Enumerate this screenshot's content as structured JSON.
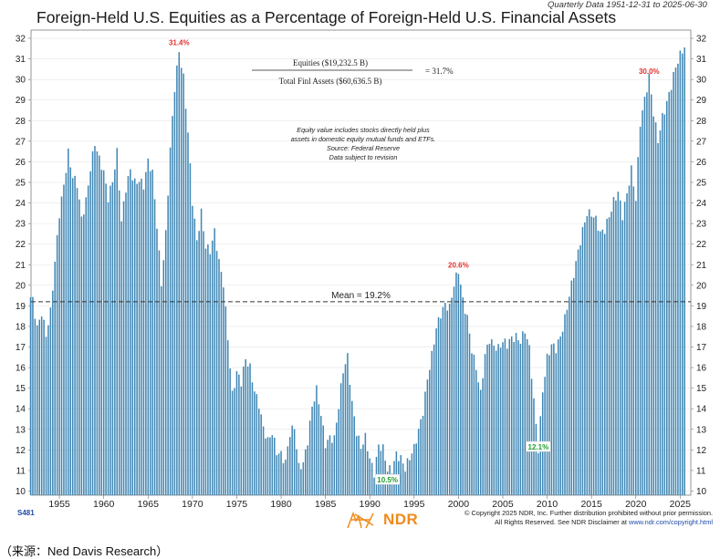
{
  "chart_data": {
    "type": "bar",
    "title": "Foreign-Held U.S. Equities as a Percentage of Foreign-Held U.S. Financial Assets",
    "subtitle": "Quarterly Data 1951-12-31 to 2025-06-30",
    "ylabel": "",
    "xlabel": "",
    "ylim": [
      9.8,
      32.4
    ],
    "xlim": [
      1951.8,
      2026.2
    ],
    "y_ticks": [
      "10",
      "11",
      "12",
      "13",
      "14",
      "15",
      "16",
      "17",
      "18",
      "19",
      "20",
      "21",
      "22",
      "23",
      "24",
      "25",
      "26",
      "27",
      "28",
      "29",
      "30",
      "31",
      "32"
    ],
    "x_ticks": [
      "1955",
      "1960",
      "1965",
      "1970",
      "1975",
      "1980",
      "1985",
      "1990",
      "1995",
      "2000",
      "2005",
      "2010",
      "2015",
      "2020",
      "2025"
    ],
    "bar_color": "#3f86b4",
    "frequency": "quarterly",
    "anchor_values": [
      [
        1951.75,
        19.3
      ],
      [
        1952,
        19.2
      ],
      [
        1952.5,
        18.0
      ],
      [
        1953,
        18.8
      ],
      [
        1953.5,
        17.6
      ],
      [
        1954,
        18.6
      ],
      [
        1954.5,
        21.0
      ],
      [
        1955,
        23.5
      ],
      [
        1955.5,
        25.0
      ],
      [
        1956,
        26.5
      ],
      [
        1956.5,
        25.2
      ],
      [
        1957,
        24.8
      ],
      [
        1957.5,
        23.2
      ],
      [
        1958,
        24.2
      ],
      [
        1958.5,
        25.8
      ],
      [
        1959,
        26.9
      ],
      [
        1959.5,
        26.0
      ],
      [
        1960,
        25.4
      ],
      [
        1960.5,
        24.3
      ],
      [
        1961,
        25.2
      ],
      [
        1961.5,
        26.5
      ],
      [
        1962,
        23.0
      ],
      [
        1962.5,
        24.6
      ],
      [
        1963,
        25.6
      ],
      [
        1963.5,
        25.1
      ],
      [
        1964,
        25.2
      ],
      [
        1964.5,
        24.8
      ],
      [
        1965,
        25.9
      ],
      [
        1965.5,
        25.4
      ],
      [
        1966,
        23.0
      ],
      [
        1966.5,
        20.2
      ],
      [
        1967,
        22.5
      ],
      [
        1967.5,
        26.5
      ],
      [
        1968,
        29.5
      ],
      [
        1968.5,
        31.4
      ],
      [
        1969,
        30.2
      ],
      [
        1969.5,
        27.5
      ],
      [
        1970,
        24.0
      ],
      [
        1970.5,
        22.0
      ],
      [
        1971,
        23.5
      ],
      [
        1971.5,
        22.0
      ],
      [
        1972,
        21.8
      ],
      [
        1972.5,
        22.6
      ],
      [
        1973,
        21.0
      ],
      [
        1973.5,
        20.0
      ],
      [
        1974,
        17.5
      ],
      [
        1974.5,
        14.8
      ],
      [
        1975,
        15.8
      ],
      [
        1975.5,
        15.2
      ],
      [
        1976,
        16.3
      ],
      [
        1976.5,
        16.0
      ],
      [
        1977,
        15.0
      ],
      [
        1977.5,
        14.3
      ],
      [
        1978,
        13.0
      ],
      [
        1978.5,
        12.3
      ],
      [
        1979,
        12.8
      ],
      [
        1979.5,
        12.0
      ],
      [
        1980,
        11.9
      ],
      [
        1980.5,
        11.4
      ],
      [
        1981,
        12.7
      ],
      [
        1981.5,
        13.0
      ],
      [
        1982,
        11.2
      ],
      [
        1982.5,
        11.5
      ],
      [
        1983,
        12.5
      ],
      [
        1983.5,
        14.0
      ],
      [
        1984,
        14.8
      ],
      [
        1984.5,
        13.7
      ],
      [
        1985,
        12.4
      ],
      [
        1985.5,
        12.7
      ],
      [
        1986,
        12.5
      ],
      [
        1986.5,
        14.0
      ],
      [
        1987,
        15.8
      ],
      [
        1987.5,
        16.6
      ],
      [
        1988,
        14.4
      ],
      [
        1988.5,
        12.9
      ],
      [
        1989,
        12.0
      ],
      [
        1989.5,
        12.5
      ],
      [
        1990,
        11.6
      ],
      [
        1990.5,
        11.0
      ],
      [
        1991,
        12.3
      ],
      [
        1991.5,
        12.0
      ],
      [
        1992,
        10.9
      ],
      [
        1992.5,
        11.0
      ],
      [
        1993,
        11.9
      ],
      [
        1993.5,
        11.7
      ],
      [
        1994,
        11.1
      ],
      [
        1994.5,
        11.5
      ],
      [
        1995,
        12.0
      ],
      [
        1995.5,
        13.0
      ],
      [
        1996,
        14.0
      ],
      [
        1996.5,
        15.5
      ],
      [
        1997,
        16.5
      ],
      [
        1997.5,
        17.8
      ],
      [
        1998,
        18.6
      ],
      [
        1998.5,
        19.2
      ],
      [
        1999,
        19.0
      ],
      [
        1999.5,
        20.0
      ],
      [
        2000,
        20.6
      ],
      [
        2000.5,
        19.2
      ],
      [
        2001,
        18.5
      ],
      [
        2001.5,
        17.0
      ],
      [
        2002,
        16.0
      ],
      [
        2002.5,
        14.6
      ],
      [
        2003,
        16.5
      ],
      [
        2003.5,
        17.4
      ],
      [
        2004,
        17.2
      ],
      [
        2004.5,
        17.0
      ],
      [
        2005,
        17.2
      ],
      [
        2005.5,
        17.0
      ],
      [
        2006,
        17.4
      ],
      [
        2006.5,
        17.6
      ],
      [
        2007,
        17.4
      ],
      [
        2007.5,
        17.8
      ],
      [
        2008,
        16.8
      ],
      [
        2008.5,
        14.3
      ],
      [
        2009,
        12.1
      ],
      [
        2009.5,
        15.0
      ],
      [
        2010,
        16.5
      ],
      [
        2010.5,
        17.0
      ],
      [
        2011,
        16.8
      ],
      [
        2011.5,
        17.5
      ],
      [
        2012,
        18.5
      ],
      [
        2012.5,
        19.6
      ],
      [
        2013,
        20.5
      ],
      [
        2013.5,
        21.5
      ],
      [
        2014,
        22.6
      ],
      [
        2014.5,
        23.6
      ],
      [
        2015,
        23.6
      ],
      [
        2015.5,
        23.2
      ],
      [
        2016,
        22.4
      ],
      [
        2016.5,
        22.6
      ],
      [
        2017,
        23.4
      ],
      [
        2017.5,
        24.2
      ],
      [
        2018,
        24.6
      ],
      [
        2018.5,
        23.3
      ],
      [
        2019,
        24.3
      ],
      [
        2019.5,
        25.6
      ],
      [
        2020,
        24.3
      ],
      [
        2020.5,
        28.0
      ],
      [
        2021,
        29.0
      ],
      [
        2021.5,
        30.0
      ],
      [
        2022,
        28.3
      ],
      [
        2022.5,
        27.1
      ],
      [
        2023,
        28.3
      ],
      [
        2023.5,
        28.9
      ],
      [
        2024,
        29.6
      ],
      [
        2024.5,
        30.5
      ],
      [
        2025,
        31.2
      ],
      [
        2025.25,
        31.5
      ],
      [
        2025.5,
        31.7
      ]
    ],
    "mean": {
      "value": 19.2,
      "label": "Mean = 19.2%"
    },
    "peak_labels": [
      {
        "year": 1968.5,
        "value": 31.4,
        "label": "31.4%",
        "color": "#e0322f"
      },
      {
        "year": 2000,
        "value": 20.6,
        "label": "20.6%",
        "color": "#e0322f"
      },
      {
        "year": 2021.5,
        "value": 30.0,
        "label": "30.0%",
        "color": "#e0322f"
      },
      {
        "year": 1992,
        "value": 10.5,
        "label": "10.5%",
        "color": "#1f9e2f"
      },
      {
        "year": 2009,
        "value": 12.1,
        "label": "12.1%",
        "color": "#1f9e2f"
      }
    ],
    "formula": {
      "numerator": "Equities ($19,232.5 B)",
      "denominator": "Total Finl Assets ($60,636.5 B)",
      "result": "= 31.7%"
    },
    "note_lines": [
      "Equity value includes stocks directly held plus",
      "assets in domestic equity mutual funds and ETFs.",
      "Source: Federal Reserve",
      "Data subject to revision"
    ]
  },
  "footer": {
    "chart_id": "S481",
    "logo_text": "NDR",
    "copyright_line1": "© Copyright 2025 NDR, Inc. Further distribution prohibited without prior permission.",
    "copyright_line2_prefix": "All Rights Reserved. See NDR Disclaimer at ",
    "copyright_link": "www.ndr.com/copyright.html"
  },
  "caption": "（来源：Ned Davis Research）"
}
